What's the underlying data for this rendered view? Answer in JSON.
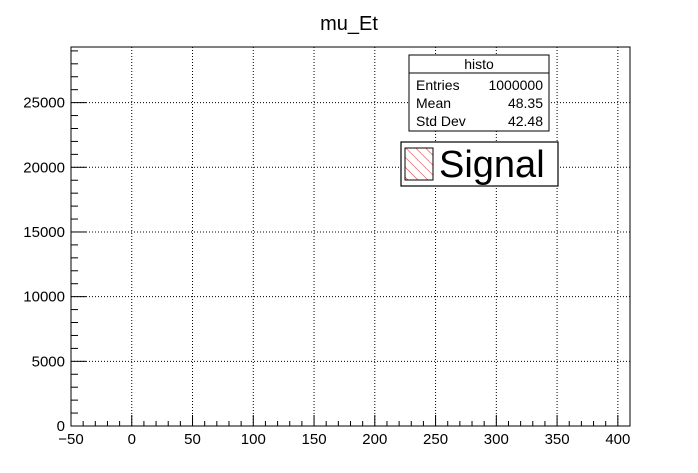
{
  "chart_data": {
    "type": "histogram",
    "title": "mu_Et",
    "xlabel": "",
    "ylabel": "",
    "xlim": [
      -50,
      410
    ],
    "ylim": [
      0,
      29300
    ],
    "x_ticks": [
      "−50",
      "0",
      "50",
      "100",
      "150",
      "200",
      "250",
      "300",
      "350",
      "400"
    ],
    "y_ticks": [
      "0",
      "5000",
      "10000",
      "15000",
      "20000",
      "25000"
    ],
    "grid": true,
    "fill_style": "red diagonal hatch",
    "colors": {
      "hatch": "#e03030",
      "line": "#000000",
      "grid": "#000000"
    },
    "series": [
      {
        "name": "Signal",
        "bin_width": 2,
        "bin_start": 0,
        "values": [
          0,
          0,
          0,
          0,
          0,
          0,
          0,
          0,
          0
        ]
      }
    ],
    "stats_box": {
      "title": "histo",
      "rows": [
        {
          "label": "Entries",
          "value": "1000000"
        },
        {
          "label": "Mean",
          "value": "48.35"
        },
        {
          "label": "Std Dev",
          "value": "42.48"
        }
      ]
    },
    "legend": {
      "label": "Signal",
      "position": "top-right"
    }
  }
}
